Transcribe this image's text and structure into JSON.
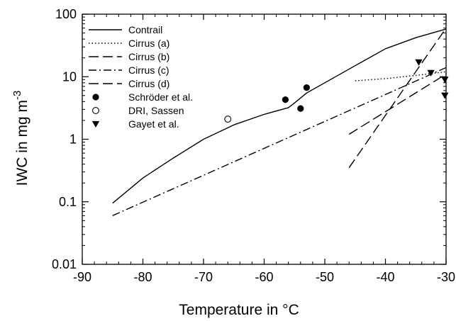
{
  "chart_data": {
    "type": "line",
    "xlabel": "Temperature in °C",
    "ylabel_main": "IWC in mg m",
    "ylabel_sup": "-3",
    "xlim": [
      -90,
      -30
    ],
    "ylim": [
      0.01,
      100
    ],
    "yscale": "log",
    "xticks": [
      -90,
      -80,
      -70,
      -60,
      -50,
      -40,
      -30
    ],
    "xtick_labels": [
      "-90",
      "-80",
      "-70",
      "-60",
      "-50",
      "-40",
      "-30"
    ],
    "yticks": [
      0.01,
      0.1,
      1,
      10,
      100
    ],
    "ytick_labels": [
      "0.01",
      "0.1",
      "1",
      "10",
      "100"
    ],
    "grid": false,
    "legend_position": "top-left",
    "series": [
      {
        "name": "Contrail",
        "kind": "line",
        "dash": "solid",
        "x": [
          -85,
          -80,
          -75,
          -70,
          -65,
          -60,
          -56,
          -55,
          -53,
          -50,
          -45,
          -40,
          -35,
          -30
        ],
        "y": [
          0.095,
          0.24,
          0.5,
          1.0,
          1.7,
          2.5,
          3.2,
          3.8,
          5.5,
          8.0,
          15,
          28,
          42,
          58
        ]
      },
      {
        "name": "Cirrus (a)",
        "kind": "line",
        "dash": "dotted",
        "x": [
          -45,
          -40,
          -35,
          -30
        ],
        "y": [
          8.6,
          9.3,
          10.5,
          12.0
        ]
      },
      {
        "name": "Cirrus (b)",
        "kind": "line",
        "dash": "long-dash",
        "x": [
          -46,
          -30
        ],
        "y": [
          0.35,
          60
        ]
      },
      {
        "name": "Cirrus (c)",
        "kind": "line",
        "dash": "dash-dot",
        "x": [
          -85,
          -30
        ],
        "y": [
          0.06,
          14
        ]
      },
      {
        "name": "Cirrus (d)",
        "kind": "line",
        "dash": "long-dash",
        "x": [
          -46,
          -30
        ],
        "y": [
          1.2,
          11
        ]
      },
      {
        "name": "Schröder et al.",
        "kind": "marker",
        "marker": "filled-circle",
        "x": [
          -56.5,
          -54,
          -53
        ],
        "y": [
          4.3,
          3.1,
          6.7
        ]
      },
      {
        "name": "DRI, Sassen",
        "kind": "marker",
        "marker": "open-circle",
        "x": [
          -66
        ],
        "y": [
          2.1
        ]
      },
      {
        "name": "Gayet et al.",
        "kind": "marker",
        "marker": "filled-down-triangle",
        "x": [
          -34.5,
          -32.5,
          -30.2,
          -30.2
        ],
        "y": [
          17,
          11.5,
          9,
          5
        ]
      }
    ]
  }
}
